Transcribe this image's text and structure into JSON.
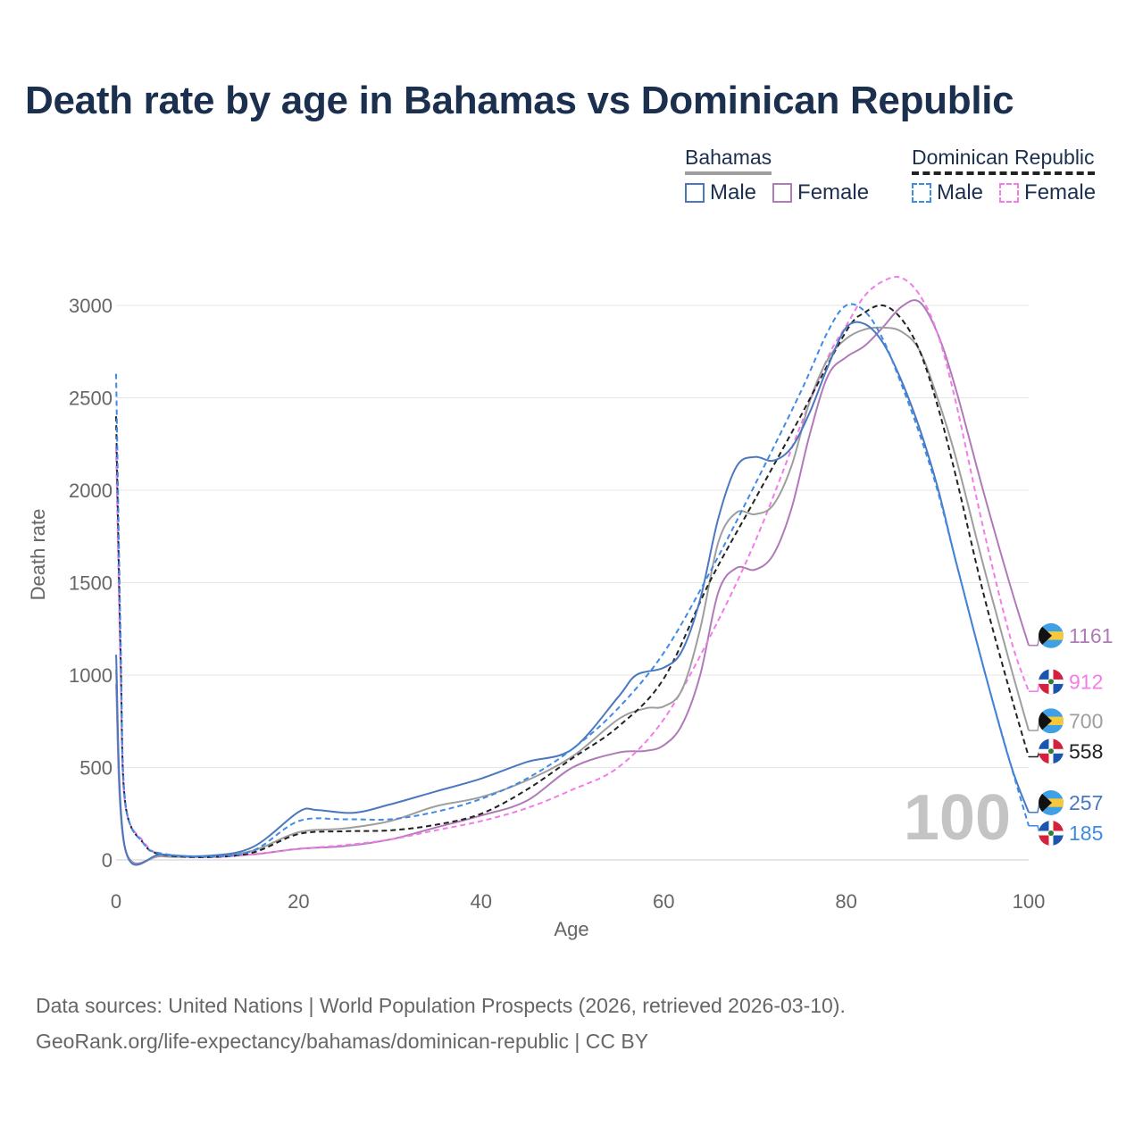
{
  "title": "Death rate by age in Bahamas vs Dominican Republic",
  "legend": {
    "groups": [
      {
        "name": "Bahamas",
        "color": "#9e9e9e",
        "dash": "solid",
        "items": [
          {
            "label": "Male",
            "color": "#4a78c0"
          },
          {
            "label": "Female",
            "color": "#b07ab8"
          }
        ]
      },
      {
        "name": "Dominican Republic",
        "color": "#222222",
        "dash": "dashed",
        "items": [
          {
            "label": "Male",
            "color": "#3f8ae6"
          },
          {
            "label": "Female",
            "color": "#f27ce8"
          }
        ]
      }
    ]
  },
  "chart_data": {
    "type": "line",
    "title": "Death rate by age in Bahamas vs Dominican Republic",
    "xlabel": "Age",
    "ylabel": "Death rate",
    "xlim": [
      0,
      100
    ],
    "ylim": [
      0,
      3000
    ],
    "xticks": [
      0,
      20,
      40,
      60,
      80,
      100
    ],
    "yticks": [
      0,
      500,
      1000,
      1500,
      2000,
      2500,
      3000
    ],
    "grid": true,
    "current_age": "100",
    "series": [
      {
        "name": "Bahamas Female",
        "country": "Bahamas",
        "sex": "Female",
        "color": "#b07ab8",
        "dash": "solid",
        "end_value": "1161",
        "x": [
          0,
          1,
          5,
          10,
          15,
          20,
          25,
          30,
          35,
          40,
          45,
          50,
          55,
          58,
          60,
          62,
          64,
          66,
          68,
          70,
          72,
          74,
          76,
          78,
          80,
          82,
          84,
          86,
          88,
          90,
          92,
          95,
          98,
          100
        ],
        "y": [
          950,
          60,
          20,
          18,
          30,
          60,
          75,
          110,
          175,
          240,
          320,
          500,
          580,
          590,
          620,
          730,
          1000,
          1450,
          1580,
          1570,
          1650,
          1900,
          2300,
          2620,
          2720,
          2780,
          2880,
          2990,
          3020,
          2850,
          2550,
          2000,
          1480,
          1161
        ]
      },
      {
        "name": "Dominican Republic Female",
        "country": "Dominican Republic",
        "sex": "Female",
        "color": "#f27ce8",
        "dash": "dashed",
        "end_value": "912",
        "x": [
          0,
          0.5,
          1,
          3,
          5,
          10,
          15,
          20,
          25,
          30,
          35,
          40,
          45,
          50,
          55,
          60,
          65,
          70,
          75,
          78,
          80,
          82,
          84,
          86,
          88,
          90,
          92,
          95,
          98,
          100
        ],
        "y": [
          2230,
          1000,
          300,
          100,
          30,
          15,
          30,
          60,
          80,
          110,
          160,
          210,
          280,
          380,
          500,
          760,
          1200,
          1720,
          2350,
          2720,
          2890,
          3050,
          3130,
          3150,
          3060,
          2850,
          2480,
          1800,
          1200,
          912
        ]
      },
      {
        "name": "Bahamas Total",
        "country": "Bahamas",
        "sex": "Total",
        "color": "#9e9e9e",
        "dash": "solid",
        "end_value": "700",
        "x": [
          0,
          1,
          5,
          10,
          15,
          20,
          25,
          30,
          35,
          40,
          45,
          50,
          55,
          58,
          60,
          62,
          64,
          66,
          68,
          70,
          72,
          74,
          76,
          78,
          80,
          82,
          84,
          86,
          88,
          90,
          92,
          95,
          98,
          100
        ],
        "y": [
          1030,
          60,
          22,
          20,
          50,
          150,
          170,
          210,
          290,
          340,
          430,
          560,
          760,
          820,
          830,
          920,
          1250,
          1720,
          1880,
          1870,
          1920,
          2130,
          2480,
          2710,
          2820,
          2870,
          2880,
          2860,
          2760,
          2500,
          2180,
          1600,
          1050,
          700
        ]
      },
      {
        "name": "Dominican Republic Total",
        "country": "Dominican Republic",
        "sex": "Total",
        "color": "#222222",
        "dash": "dashed",
        "end_value": "558",
        "x": [
          0,
          0.5,
          1,
          3,
          5,
          10,
          15,
          20,
          25,
          30,
          35,
          40,
          45,
          50,
          55,
          60,
          65,
          70,
          75,
          80,
          82,
          84,
          86,
          88,
          90,
          92,
          95,
          98,
          100
        ],
        "y": [
          2400,
          1100,
          310,
          90,
          30,
          15,
          40,
          140,
          155,
          160,
          190,
          250,
          380,
          550,
          720,
          980,
          1500,
          1950,
          2400,
          2860,
          2960,
          3000,
          2930,
          2760,
          2460,
          2080,
          1450,
          900,
          558
        ]
      },
      {
        "name": "Bahamas Male",
        "country": "Bahamas",
        "sex": "Male",
        "color": "#4a78c0",
        "dash": "solid",
        "end_value": "257",
        "x": [
          0,
          1,
          5,
          10,
          15,
          20,
          22,
          26,
          30,
          35,
          40,
          45,
          50,
          55,
          57,
          60,
          62,
          64,
          66,
          68,
          70,
          72,
          74,
          76,
          78,
          80,
          82,
          84,
          86,
          88,
          90,
          92,
          95,
          98,
          100
        ],
        "y": [
          1110,
          60,
          30,
          22,
          70,
          260,
          270,
          255,
          300,
          370,
          440,
          530,
          600,
          880,
          1000,
          1040,
          1130,
          1410,
          1850,
          2130,
          2180,
          2160,
          2230,
          2420,
          2670,
          2880,
          2900,
          2800,
          2600,
          2340,
          2020,
          1620,
          1050,
          520,
          257
        ]
      },
      {
        "name": "Dominican Republic Male",
        "country": "Dominican Republic",
        "sex": "Male",
        "color": "#3f8ae6",
        "dash": "dashed",
        "end_value": "185",
        "x": [
          0,
          0.5,
          1,
          3,
          5,
          10,
          15,
          20,
          25,
          30,
          35,
          40,
          45,
          50,
          55,
          60,
          65,
          70,
          75,
          78,
          80,
          82,
          84,
          86,
          88,
          90,
          92,
          95,
          98,
          100
        ],
        "y": [
          2630,
          1200,
          320,
          90,
          35,
          18,
          50,
          210,
          220,
          220,
          260,
          330,
          440,
          600,
          820,
          1120,
          1550,
          2030,
          2530,
          2860,
          3000,
          2970,
          2820,
          2580,
          2310,
          2000,
          1620,
          1050,
          520,
          185
        ]
      }
    ]
  },
  "footer": {
    "line1": "Data sources: United Nations | World Population Prospects (2026, retrieved 2026-03-10).",
    "line2": "GeoRank.org/life-expectancy/bahamas/dominican-republic | CC BY"
  }
}
